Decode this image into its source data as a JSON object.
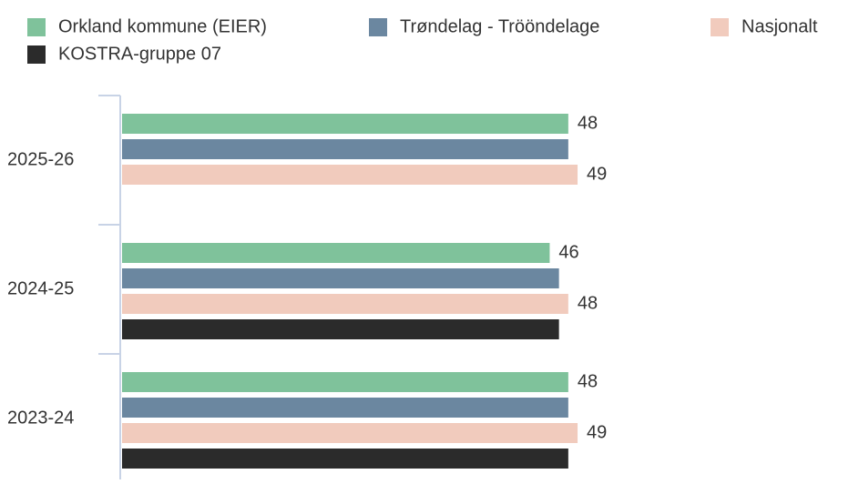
{
  "chart_data": {
    "type": "bar",
    "orientation": "horizontal",
    "categories": [
      "2025-26",
      "2024-25",
      "2023-24"
    ],
    "series": [
      {
        "name": "Orkland kommune (EIER)",
        "color": "#7fc29b",
        "values": [
          48,
          46,
          48
        ],
        "value_labels": [
          "48",
          "46",
          "48"
        ]
      },
      {
        "name": "Trøndelag - Tröönde­lage",
        "color": "#6b87a0",
        "values": [
          48,
          47,
          48
        ]
      },
      {
        "name": "Nasjonalt",
        "color": "#f1cbbd",
        "values": [
          49,
          48,
          49
        ],
        "value_labels": [
          "49",
          "48",
          "49"
        ]
      },
      {
        "name": "KOSTRA-gruppe 07",
        "color": "#2b2b2b",
        "values": [
          null,
          47,
          48
        ]
      }
    ],
    "xlim": [
      0,
      78
    ]
  }
}
